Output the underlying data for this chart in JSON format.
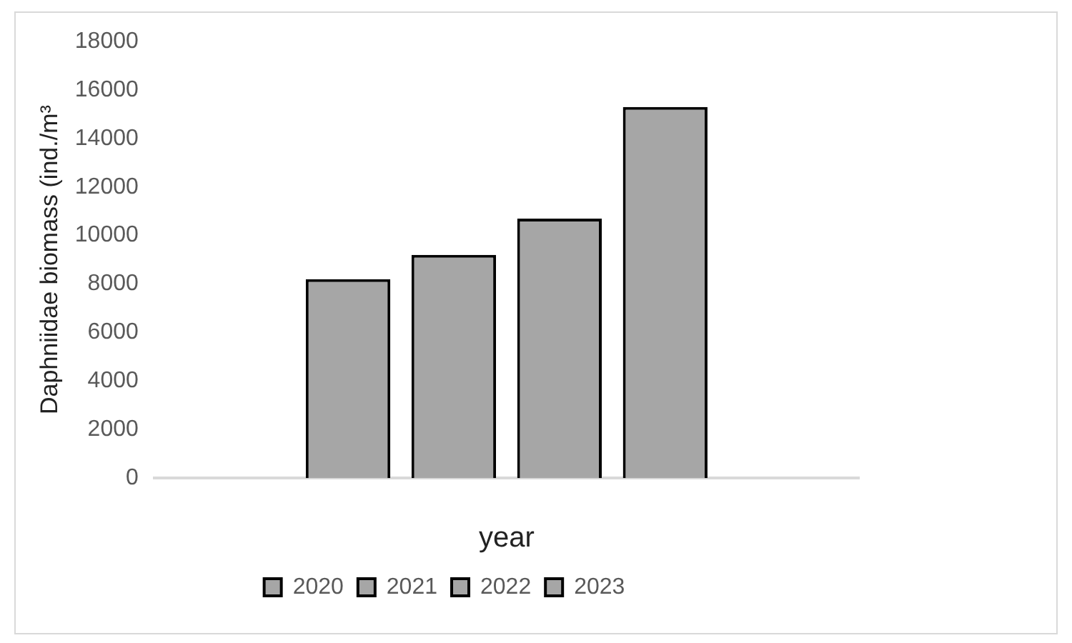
{
  "chart_data": {
    "type": "bar",
    "ylabel": "Daphniidae biomass (ind./m³",
    "xlabel": "year",
    "categories": [
      null
    ],
    "series": [
      {
        "name": "2020",
        "color": "#a6a6a6",
        "values": [
          8200
        ]
      },
      {
        "name": "2021",
        "color": "#a6a6a6",
        "values": [
          9200
        ]
      },
      {
        "name": "2022",
        "color": "#a6a6a6",
        "values": [
          10700
        ]
      },
      {
        "name": "2023",
        "color": "#a6a6a6",
        "values": [
          15300
        ]
      }
    ],
    "ylim": [
      0,
      18000
    ],
    "yticks": [
      0,
      2000,
      4000,
      6000,
      8000,
      10000,
      12000,
      14000,
      16000,
      18000
    ],
    "grid": false,
    "legend": "bottom"
  }
}
